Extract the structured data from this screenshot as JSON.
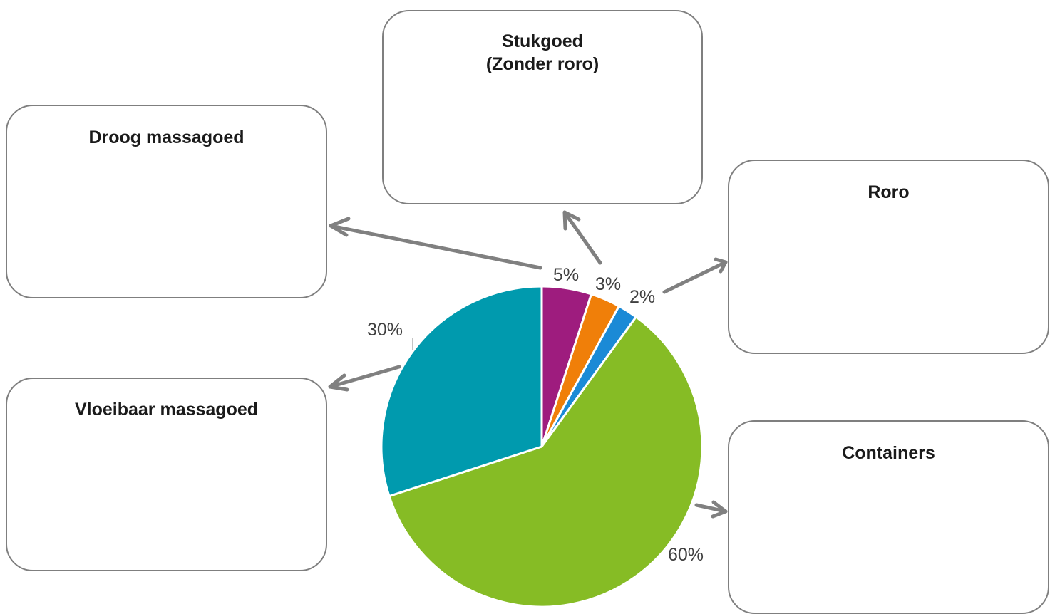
{
  "chart_data": {
    "type": "pie",
    "start_angle_deg": 0,
    "direction": "clockwise",
    "slices": [
      {
        "label": "Stukgoed (Zonder roro)",
        "value": 5,
        "display": "5%",
        "color": "#9e1c7e"
      },
      {
        "label": "Roro",
        "value": 3,
        "display": "3%",
        "color": "#f07f09"
      },
      {
        "label": "Containers",
        "value": 2,
        "display": "2%",
        "color": "#1b8ad6"
      },
      {
        "label": "Droog massagoed",
        "value": 60,
        "display": "60%",
        "color": "#86bc25"
      },
      {
        "label": "Vloeibaar massagoed",
        "value": 30,
        "display": "30%",
        "color": "#009aae"
      }
    ]
  },
  "boxes": {
    "droog": {
      "title": "Droog massagoed"
    },
    "stukgoed": {
      "title": "Stukgoed\n(Zonder roro)"
    },
    "roro": {
      "title": "Roro"
    },
    "vloeibaar": {
      "title": "Vloeibaar massagoed"
    },
    "containers": {
      "title": "Containers"
    }
  },
  "colors": {
    "box_border": "#7f7f7f",
    "arrow": "#808080",
    "label_text": "#404040",
    "slice_separator": "#ffffff"
  }
}
